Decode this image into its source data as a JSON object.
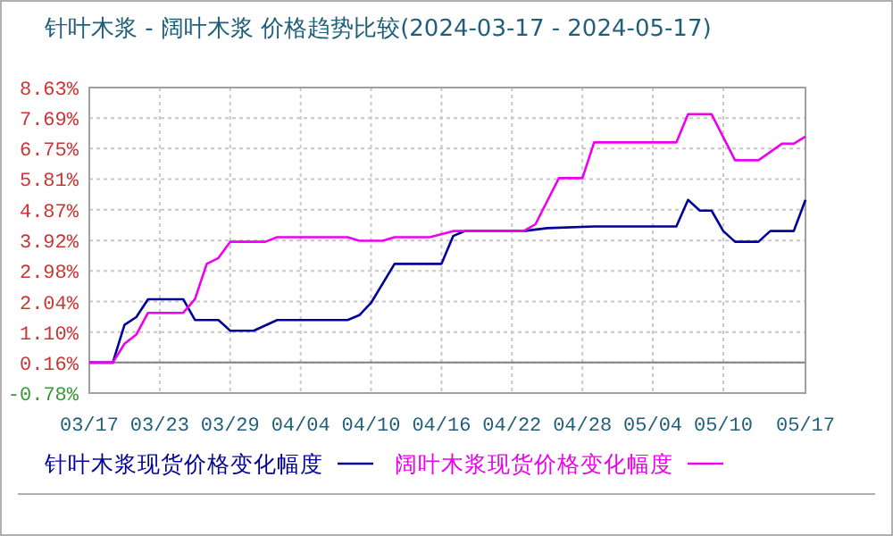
{
  "chart_data": {
    "type": "line",
    "title": "针叶木浆 - 阔叶木浆 价格趋势比较(2024-03-17 - 2024-05-17)",
    "xlim": [
      "2024-03-17",
      "2024-05-17"
    ],
    "xticks": [
      {
        "value": "2024-03-17",
        "label": "03/17"
      },
      {
        "value": "2024-03-23",
        "label": "03/23"
      },
      {
        "value": "2024-03-29",
        "label": "03/29"
      },
      {
        "value": "2024-04-04",
        "label": "04/04"
      },
      {
        "value": "2024-04-10",
        "label": "04/10"
      },
      {
        "value": "2024-04-16",
        "label": "04/16"
      },
      {
        "value": "2024-04-22",
        "label": "04/22"
      },
      {
        "value": "2024-04-28",
        "label": "04/28"
      },
      {
        "value": "2024-05-04",
        "label": "05/04"
      },
      {
        "value": "2024-05-10",
        "label": "05/10"
      },
      {
        "value": "2024-05-17",
        "label": "05/17"
      }
    ],
    "ylim": [
      -0.78,
      8.63
    ],
    "yticks": [
      {
        "value": -0.78,
        "label": "-0.78%"
      },
      {
        "value": 0.16,
        "label": "0.16%"
      },
      {
        "value": 1.1,
        "label": "1.10%"
      },
      {
        "value": 2.04,
        "label": "2.04%"
      },
      {
        "value": 2.98,
        "label": "2.98%"
      },
      {
        "value": 3.92,
        "label": "3.92%"
      },
      {
        "value": 4.87,
        "label": "4.87%"
      },
      {
        "value": 5.81,
        "label": "5.81%"
      },
      {
        "value": 6.75,
        "label": "6.75%"
      },
      {
        "value": 7.69,
        "label": "7.69%"
      },
      {
        "value": 8.63,
        "label": "8.63%"
      }
    ],
    "grid": true,
    "legend": "bottom",
    "marker": "none",
    "line_style": "solid",
    "ref_lines": [
      {
        "axis": "y",
        "value": 0.16,
        "color": "#808080"
      }
    ],
    "series": [
      {
        "name": "针叶木浆现货价格变化幅度",
        "color": "#000099",
        "x": [
          "2024-03-17",
          "2024-03-19",
          "2024-03-20",
          "2024-03-21",
          "2024-03-22",
          "2024-03-25",
          "2024-03-26",
          "2024-03-28",
          "2024-03-29",
          "2024-03-31",
          "2024-04-02",
          "2024-04-08",
          "2024-04-09",
          "2024-04-10",
          "2024-04-12",
          "2024-04-16",
          "2024-04-17",
          "2024-04-18",
          "2024-04-23",
          "2024-04-25",
          "2024-04-29",
          "2024-05-06",
          "2024-05-07",
          "2024-05-08",
          "2024-05-09",
          "2024-05-10",
          "2024-05-11",
          "2024-05-13",
          "2024-05-14",
          "2024-05-16",
          "2024-05-17"
        ],
        "values": [
          0.16,
          0.16,
          1.32,
          1.56,
          2.11,
          2.11,
          1.47,
          1.47,
          1.14,
          1.14,
          1.47,
          1.47,
          1.62,
          2.0,
          3.2,
          3.2,
          4.06,
          4.21,
          4.21,
          4.3,
          4.35,
          4.35,
          5.17,
          4.84,
          4.84,
          4.21,
          3.88,
          3.88,
          4.21,
          4.21,
          5.17
        ]
      },
      {
        "name": "阔叶木浆现货价格变化幅度",
        "color": "#ee00ee",
        "x": [
          "2024-03-17",
          "2024-03-19",
          "2024-03-20",
          "2024-03-21",
          "2024-03-22",
          "2024-03-25",
          "2024-03-26",
          "2024-03-27",
          "2024-03-28",
          "2024-03-29",
          "2024-04-01",
          "2024-04-02",
          "2024-04-08",
          "2024-04-09",
          "2024-04-11",
          "2024-04-12",
          "2024-04-15",
          "2024-04-17",
          "2024-04-23",
          "2024-04-24",
          "2024-04-26",
          "2024-04-28",
          "2024-04-29",
          "2024-05-06",
          "2024-05-07",
          "2024-05-09",
          "2024-05-11",
          "2024-05-13",
          "2024-05-15",
          "2024-05-16",
          "2024-05-17"
        ],
        "values": [
          0.16,
          0.16,
          0.74,
          1.02,
          1.69,
          1.69,
          2.11,
          3.2,
          3.38,
          3.88,
          3.88,
          4.02,
          4.02,
          3.91,
          3.91,
          4.02,
          4.02,
          4.21,
          4.21,
          4.42,
          5.84,
          5.84,
          6.94,
          6.94,
          7.81,
          7.81,
          6.39,
          6.39,
          6.9,
          6.9,
          7.12
        ]
      }
    ]
  }
}
